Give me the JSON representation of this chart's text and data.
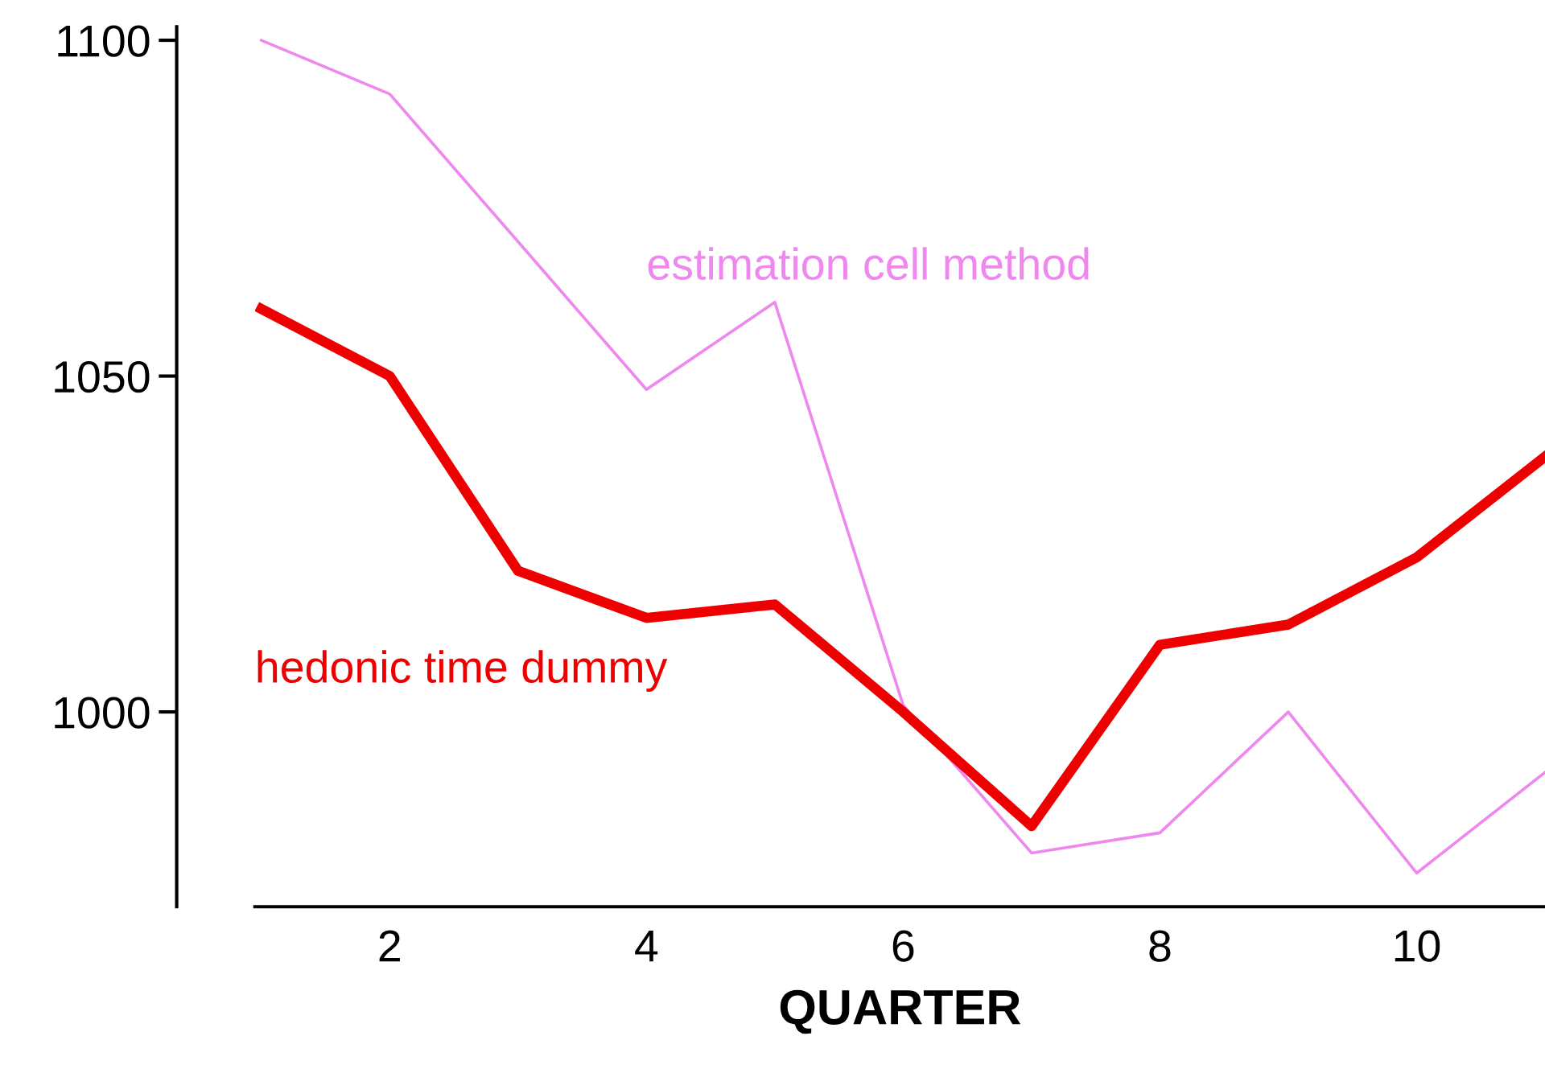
{
  "chart_data": {
    "type": "line",
    "xlabel": "QUARTER",
    "x": [
      1,
      2,
      3,
      4,
      5,
      6,
      7,
      8,
      9,
      10,
      11
    ],
    "series": [
      {
        "name": "estimation cell method",
        "color": "#ee88ee",
        "values": [
          1100,
          1092,
          1070,
          1048,
          1061,
          1001,
          979,
          982,
          1000,
          976,
          991
        ]
      },
      {
        "name": "hedonic time dummy",
        "color": "#ee0000",
        "values": [
          1060,
          1050,
          1021,
          1014,
          1016,
          1000,
          983,
          1010,
          1013,
          1023,
          1038
        ]
      }
    ],
    "xlim": [
      0.95,
      11
    ],
    "xticks": [
      2,
      4,
      6,
      8,
      10
    ],
    "ylim": [
      971,
      1102
    ],
    "yticks": [
      1000,
      1050,
      1100
    ],
    "grid": false,
    "legend": false,
    "marker": "none",
    "line_style": "solid"
  }
}
